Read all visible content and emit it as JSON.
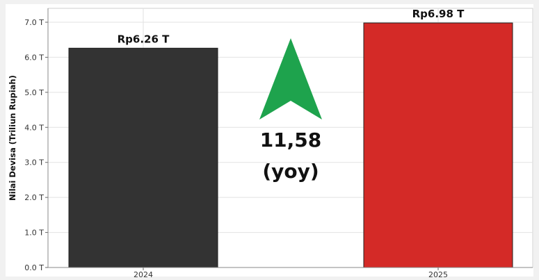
{
  "chart_data": {
    "type": "bar",
    "categories": [
      "2024",
      "2025"
    ],
    "values": [
      6.26,
      6.98
    ],
    "data_labels": [
      "Rp6.26 T",
      "Rp6.98 T"
    ],
    "bar_colors": [
      "#333333",
      "#d42a27"
    ],
    "ylabel": "Nilai Devisa (Triliun Rupiah)",
    "ylim": [
      0,
      7.0
    ],
    "yticks": [
      0,
      1,
      2,
      3,
      4,
      5,
      6,
      7
    ],
    "ytick_labels": [
      "0.0 T",
      "1.0 T",
      "2.0 T",
      "3.0 T",
      "4.0 T",
      "5.0 T",
      "6.0 T",
      "7.0 T"
    ],
    "grid": true,
    "annotation": {
      "line1": "11,58",
      "line2": "(yoy)",
      "arrow_color": "#1ea34d",
      "arrow_direction": "up"
    }
  }
}
